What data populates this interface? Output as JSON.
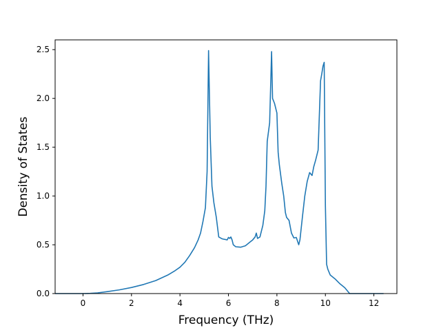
{
  "chart_data": {
    "type": "line",
    "title": "",
    "xlabel": "Frequency (THz)",
    "ylabel": "Density of States",
    "xlim": [
      -1.15,
      12.95
    ],
    "ylim": [
      0.0,
      2.6
    ],
    "xticks": [
      0,
      2,
      4,
      6,
      8,
      10,
      12
    ],
    "yticks": [
      0.0,
      0.5,
      1.0,
      1.5,
      2.0,
      2.5
    ],
    "xtick_labels": [
      "0",
      "2",
      "4",
      "6",
      "8",
      "10",
      "12"
    ],
    "ytick_labels": [
      "0.0",
      "0.5",
      "1.0",
      "1.5",
      "2.0",
      "2.5"
    ],
    "grid": false,
    "legend": "none",
    "color": "#1f77b4",
    "series": [
      {
        "x": [
          -1.15,
          -0.5,
          0.0,
          0.3,
          0.6,
          1.0,
          1.5,
          2.0,
          2.5,
          3.0,
          3.5,
          3.8,
          4.0,
          4.2,
          4.4,
          4.6,
          4.75,
          4.85,
          4.95,
          5.05,
          5.12,
          5.18,
          5.25,
          5.32,
          5.4,
          5.5,
          5.6,
          5.75,
          5.95,
          6.0,
          6.05,
          6.1,
          6.15,
          6.2,
          6.3,
          6.5,
          6.7,
          6.9,
          7.0,
          7.1,
          7.15,
          7.2,
          7.3,
          7.35,
          7.42,
          7.5,
          7.55,
          7.6,
          7.7,
          7.78,
          7.82,
          7.9,
          8.0,
          8.05,
          8.1,
          8.2,
          8.28,
          8.35,
          8.4,
          8.5,
          8.6,
          8.7,
          8.8,
          8.9,
          8.95,
          9.05,
          9.15,
          9.25,
          9.35,
          9.45,
          9.52,
          9.6,
          9.7,
          9.8,
          9.85,
          9.9,
          9.95,
          10.0,
          10.05,
          10.1,
          10.15,
          10.2,
          10.4,
          10.6,
          10.8,
          11.0,
          11.15,
          11.25,
          11.6,
          12.4
        ],
        "y": [
          0.0,
          0.0,
          0.0,
          0.002,
          0.007,
          0.02,
          0.038,
          0.062,
          0.093,
          0.133,
          0.19,
          0.235,
          0.27,
          0.32,
          0.39,
          0.47,
          0.55,
          0.62,
          0.74,
          0.88,
          1.25,
          2.49,
          1.6,
          1.1,
          0.93,
          0.78,
          0.58,
          0.56,
          0.55,
          0.575,
          0.565,
          0.58,
          0.55,
          0.5,
          0.48,
          0.475,
          0.49,
          0.53,
          0.55,
          0.58,
          0.62,
          0.565,
          0.58,
          0.63,
          0.7,
          0.85,
          1.1,
          1.56,
          1.75,
          2.48,
          2.0,
          1.95,
          1.85,
          1.45,
          1.32,
          1.13,
          1.0,
          0.83,
          0.78,
          0.75,
          0.62,
          0.57,
          0.575,
          0.5,
          0.55,
          0.78,
          1.0,
          1.15,
          1.24,
          1.21,
          1.3,
          1.37,
          1.47,
          2.18,
          2.25,
          2.33,
          2.37,
          0.9,
          0.3,
          0.25,
          0.22,
          0.19,
          0.15,
          0.1,
          0.06,
          0.0,
          0.0,
          0.0,
          0.0,
          0.0
        ]
      }
    ]
  }
}
